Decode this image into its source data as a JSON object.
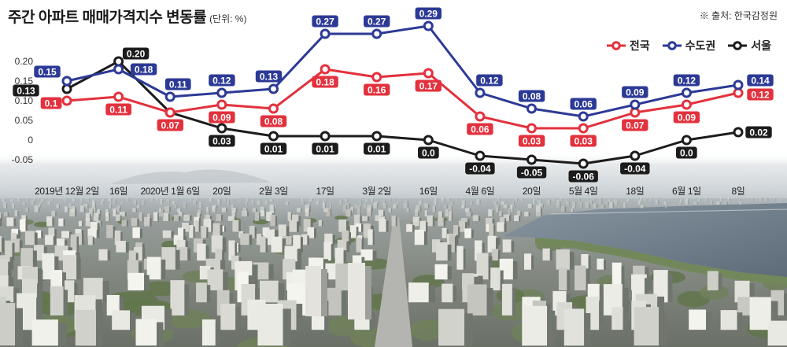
{
  "chart_data": {
    "type": "line",
    "title": "주간 아파트 매매가격지수 변동률",
    "unit_label": "(단위: %)",
    "source": "※ 출처: 한국감정원",
    "categories": [
      "2019년 12월 2일",
      "16일",
      "2020년 1월 6일",
      "20일",
      "2월 3일",
      "17일",
      "3월 2일",
      "16일",
      "4월 6일",
      "20일",
      "5월 4일",
      "18일",
      "6월 1일",
      "8일"
    ],
    "yticks": [
      0.2,
      0.15,
      0.1,
      0.05,
      0,
      -0.05
    ],
    "ytick_labels": [
      "0.20",
      "0.15",
      "0.10",
      "0.05",
      "0",
      "-0.05"
    ],
    "ylim": [
      -0.08,
      0.3
    ],
    "grid": false,
    "legend": "top-right",
    "series": [
      {
        "name": "전국",
        "color": "#e3313d",
        "values": [
          0.1,
          0.11,
          0.07,
          0.09,
          0.08,
          0.18,
          0.16,
          0.17,
          0.06,
          0.03,
          0.03,
          0.07,
          0.09,
          0.12
        ],
        "labels": [
          "0.1",
          "0.11",
          "0.07",
          "0.09",
          "0.08",
          "0.18",
          "0.16",
          "0.17",
          "0.06",
          "0.03",
          "0.03",
          "0.07",
          "0.09",
          "0.12"
        ]
      },
      {
        "name": "수도권",
        "color": "#2c3a96",
        "values": [
          0.15,
          0.18,
          0.11,
          0.12,
          0.13,
          0.27,
          0.27,
          0.29,
          0.12,
          0.08,
          0.06,
          0.09,
          0.12,
          0.14
        ],
        "labels": [
          "0.15",
          "0.18",
          "0.11",
          "0.12",
          "0.13",
          "0.27",
          "0.27",
          "0.29",
          "0.12",
          "0.08",
          "0.06",
          "0.09",
          "0.12",
          "0.14"
        ]
      },
      {
        "name": "서울",
        "color": "#1c1c1c",
        "values": [
          0.13,
          0.2,
          0.07,
          0.03,
          0.01,
          0.01,
          0.01,
          0.0,
          -0.04,
          -0.05,
          -0.06,
          -0.04,
          0.0,
          0.02
        ],
        "labels": [
          "0.13",
          "0.20",
          null,
          "0.03",
          "0.01",
          "0.01",
          "0.01",
          "0.0",
          "-0.04",
          "-0.05",
          "-0.06",
          "-0.04",
          "0.0",
          "0.02"
        ]
      }
    ]
  }
}
